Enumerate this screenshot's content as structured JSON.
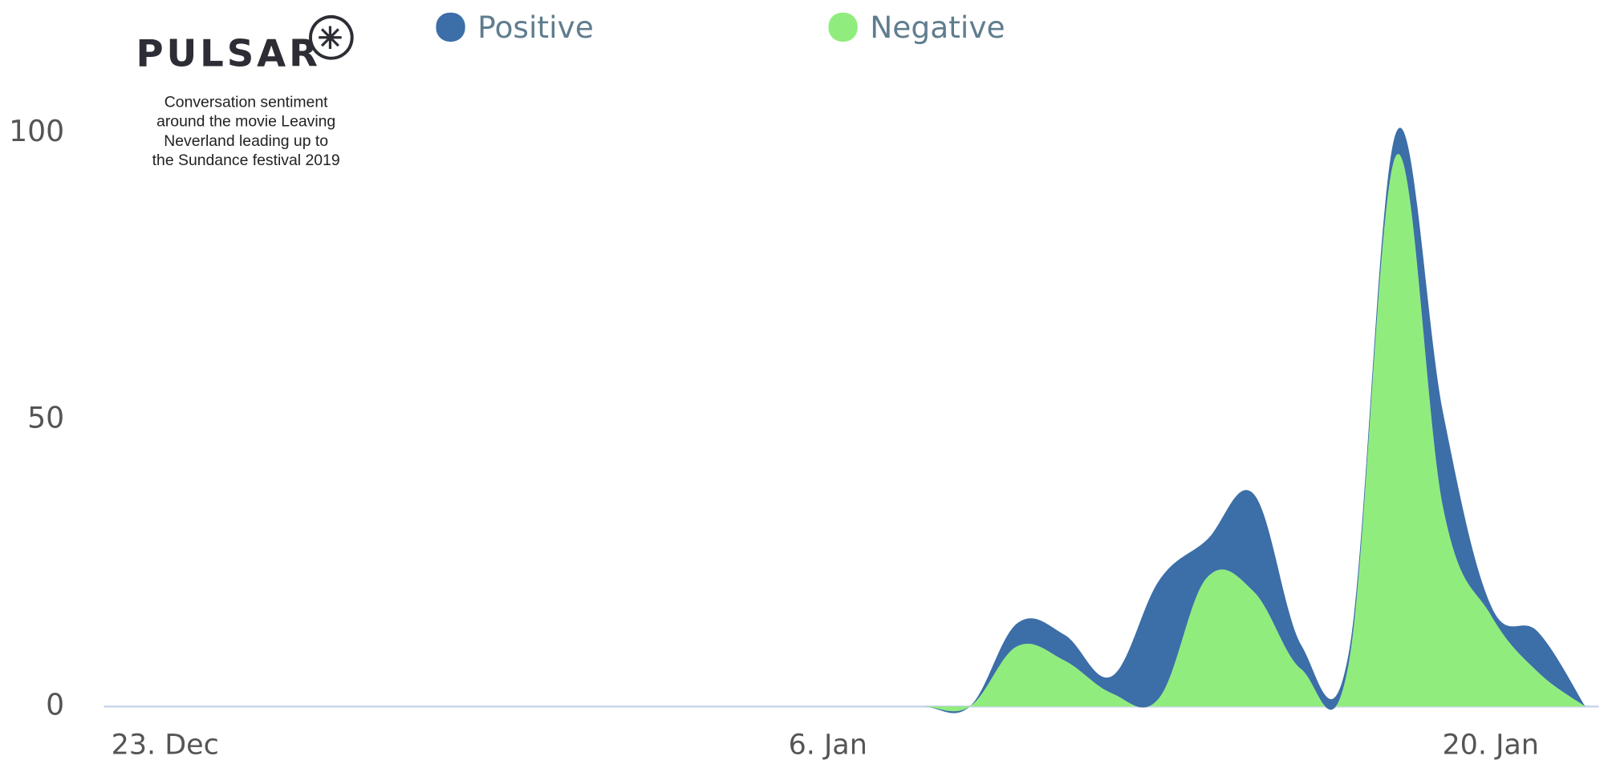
{
  "chart_data": {
    "type": "stacked-area",
    "logo": "PULSAR",
    "annotation_lines": [
      "Conversation sentiment",
      "around the movie Leaving",
      "Neverland leading up to",
      "the Sundance festival 2019"
    ],
    "categories": [
      "23. Dec",
      null,
      null,
      null,
      null,
      null,
      null,
      null,
      null,
      null,
      null,
      null,
      null,
      null,
      "6. Jan",
      null,
      null,
      null,
      null,
      null,
      null,
      null,
      null,
      null,
      null,
      null,
      null,
      null,
      "20. Jan",
      null,
      null
    ],
    "series": [
      {
        "name": "Positive",
        "color": "#3c6ea8",
        "values": [
          0,
          0,
          0,
          0,
          0,
          0,
          0,
          0,
          0,
          0,
          0,
          0,
          0,
          0,
          0,
          0,
          0,
          0,
          4,
          4.5,
          3,
          20.5,
          6.6,
          17,
          4.2,
          1.8,
          4,
          16.5,
          1.7,
          7,
          0
        ]
      },
      {
        "name": "Negative",
        "color": "#90ed7d",
        "values": [
          0,
          0,
          0,
          0,
          0,
          0,
          0,
          0,
          0,
          0,
          0,
          0,
          0,
          0,
          0,
          0,
          0,
          0,
          10.5,
          8,
          2.3,
          1.5,
          22.4,
          20,
          6.5,
          7.4,
          96,
          34.5,
          16,
          6,
          0
        ]
      }
    ],
    "ylim": [
      0,
      100
    ],
    "yticks": [
      0,
      50,
      100
    ],
    "grid": false,
    "legend": "top"
  }
}
